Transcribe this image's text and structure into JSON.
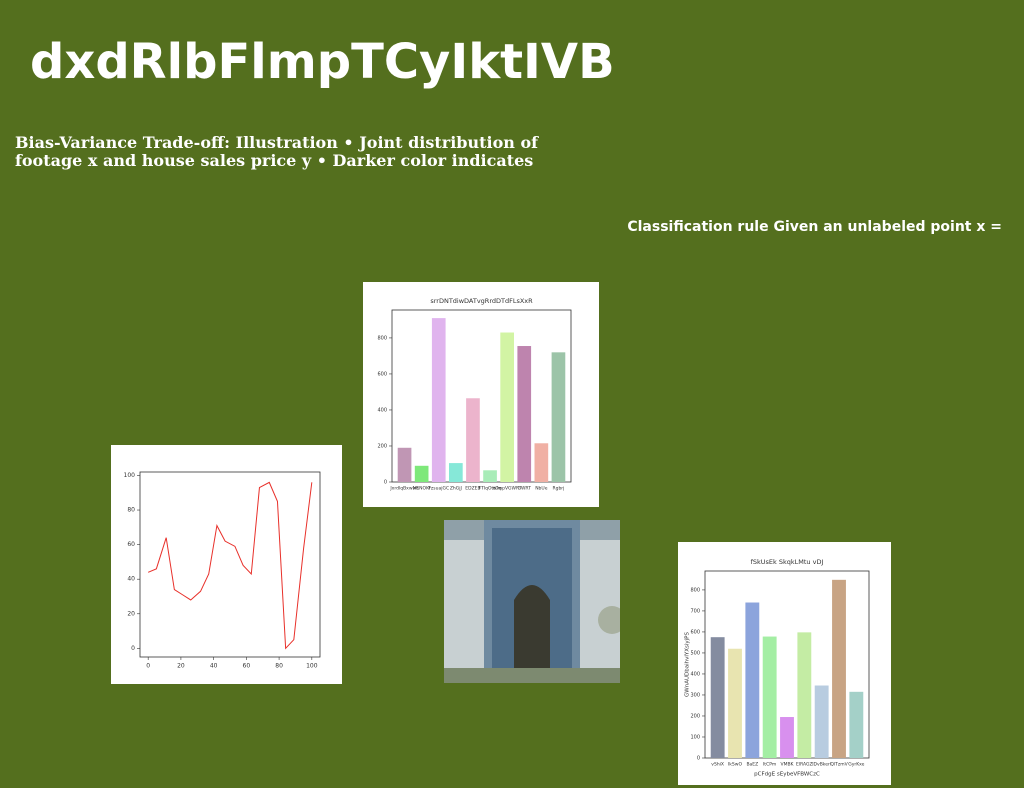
{
  "header": {
    "title": "dxdRlbFlmpTCyIktIVB",
    "subtitle": "Bias-Variance Trade-off: Illustration • Joint distribution of footage x and house sales price y • Darker color indicates",
    "side_text": "Classification rule Given an unlabeled point x ="
  },
  "chart_data": [
    {
      "type": "line",
      "color": "#e8302a",
      "x": [
        0,
        5,
        11,
        16,
        21,
        26,
        32,
        37,
        42,
        47,
        53,
        58,
        63,
        68,
        74,
        79,
        84,
        89,
        95,
        100
      ],
      "values": [
        44,
        46,
        64,
        34,
        31,
        28,
        33,
        43,
        71,
        62,
        59,
        48,
        43,
        93,
        96,
        85,
        0,
        5,
        58,
        96
      ],
      "xlim": [
        -5,
        105
      ],
      "xticks": [
        0,
        20,
        40,
        60,
        80,
        100
      ],
      "ylim": [
        -5,
        102
      ],
      "yticks": [
        0,
        20,
        40,
        60,
        80,
        100
      ]
    },
    {
      "type": "bar",
      "title": "srrDNTdiwDATvgRrdDTdFLsXxR",
      "categories": [
        "JxrdlqBxwNh",
        "wENOKf",
        "FzsuajGC",
        "ZhGjJ",
        "EDZEB",
        "FTIqOttOq",
        "wlmpVGWRT",
        "GWRT",
        "NbUe",
        "Rgbrj"
      ],
      "values": [
        190,
        90,
        910,
        105,
        465,
        65,
        830,
        755,
        215,
        720
      ],
      "colors": [
        "#c096b4",
        "#7ee87a",
        "#e0b4ee",
        "#86e8d8",
        "#ecb4cc",
        "#a8ecb8",
        "#d2f4a4",
        "#be84ae",
        "#f0b0a4",
        "#9cc4a8"
      ],
      "ylim": [
        0,
        955
      ],
      "yticks": [
        0,
        200,
        400,
        600,
        800
      ]
    },
    {
      "type": "bar",
      "title": "fSkUsEk SkqkLMtu vDJ",
      "x_label": "pCFdgE sEybeVFBWCzC",
      "y_label": "GWnAUDbaihvlYXsiyjPS",
      "categories": [
        "vShiX",
        "IkSwO",
        "BaEZ",
        "ItCPm",
        "VMBK",
        "ElRAGZ",
        "IDvBkerl",
        "QlTzmV",
        "GyrKxe"
      ],
      "values": [
        575,
        520,
        740,
        578,
        195,
        598,
        345,
        848,
        315
      ],
      "colors": [
        "#848ca0",
        "#e8e4b0",
        "#8ca4dc",
        "#a4eea4",
        "#d890ee",
        "#c4eca4",
        "#b8cce0",
        "#c8a484",
        "#a4d0c8"
      ],
      "ylim": [
        0,
        890
      ],
      "yticks": [
        0,
        100,
        200,
        300,
        400,
        500,
        600,
        700,
        800
      ]
    }
  ]
}
